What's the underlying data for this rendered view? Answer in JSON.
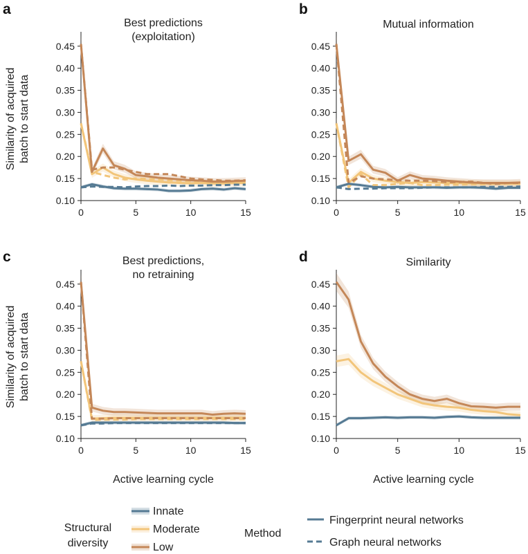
{
  "shared": {
    "xlabel": "Active learning cycle",
    "ylabel_line1": "Similarity of acquired",
    "ylabel_line2": "batch to start data",
    "xlim": [
      0,
      15
    ],
    "ylim": [
      0.1,
      0.47
    ],
    "xticks": [
      "0",
      "5",
      "10",
      "15"
    ],
    "yticks": [
      "0.10",
      "0.15",
      "0.20",
      "0.25",
      "0.30",
      "0.35",
      "0.40",
      "0.45"
    ]
  },
  "legend": {
    "group1_title_line1": "Structural",
    "group1_title_line2": "diversity",
    "group2_title": "Method",
    "innate": "Innate",
    "moderate": "Moderate",
    "low": "Low",
    "fnn": "Fingerprint neural networks",
    "gnn": "Graph neural networks"
  },
  "colors": {
    "innate": "#557a93",
    "moderate": "#f2c57a",
    "low": "#c48758"
  },
  "chart_data": [
    {
      "panel": "a",
      "type": "line",
      "title_line1": "Best predictions",
      "title_line2": "(exploitation)",
      "x": [
        0,
        1,
        2,
        3,
        4,
        5,
        6,
        7,
        8,
        9,
        10,
        11,
        12,
        13,
        14,
        15
      ],
      "series": [
        {
          "name": "Innate",
          "method": "Fingerprint neural networks",
          "values": [
            0.13,
            0.137,
            0.132,
            0.128,
            0.127,
            0.127,
            0.126,
            0.125,
            0.122,
            0.122,
            0.123,
            0.126,
            0.127,
            0.125,
            0.128,
            0.126
          ]
        },
        {
          "name": "Innate",
          "method": "Graph neural networks",
          "values": [
            0.13,
            0.132,
            0.131,
            0.131,
            0.13,
            0.132,
            0.133,
            0.133,
            0.134,
            0.133,
            0.134,
            0.134,
            0.135,
            0.135,
            0.136,
            0.136
          ]
        },
        {
          "name": "Moderate",
          "method": "Fingerprint neural networks",
          "values": [
            0.275,
            0.16,
            0.175,
            0.16,
            0.152,
            0.148,
            0.145,
            0.143,
            0.141,
            0.14,
            0.139,
            0.14,
            0.139,
            0.139,
            0.14,
            0.14
          ]
        },
        {
          "name": "Moderate",
          "method": "Graph neural networks",
          "values": [
            0.275,
            0.165,
            0.158,
            0.152,
            0.148,
            0.15,
            0.149,
            0.148,
            0.146,
            0.145,
            0.144,
            0.143,
            0.143,
            0.142,
            0.142,
            0.142
          ]
        },
        {
          "name": "Low",
          "method": "Fingerprint neural networks",
          "values": [
            0.455,
            0.165,
            0.218,
            0.18,
            0.172,
            0.158,
            0.155,
            0.152,
            0.15,
            0.148,
            0.146,
            0.145,
            0.143,
            0.143,
            0.144,
            0.145
          ]
        },
        {
          "name": "Low",
          "method": "Graph neural networks",
          "values": [
            0.455,
            0.17,
            0.175,
            0.175,
            0.17,
            0.165,
            0.16,
            0.16,
            0.16,
            0.155,
            0.15,
            0.148,
            0.147,
            0.145,
            0.145,
            0.146
          ]
        }
      ]
    },
    {
      "panel": "b",
      "type": "line",
      "title_line1": "Mutual information",
      "title_line2": "",
      "x": [
        0,
        1,
        2,
        3,
        4,
        5,
        6,
        7,
        8,
        9,
        10,
        11,
        12,
        13,
        14,
        15
      ],
      "series": [
        {
          "name": "Innate",
          "method": "Fingerprint neural networks",
          "values": [
            0.13,
            0.138,
            0.135,
            0.131,
            0.13,
            0.131,
            0.13,
            0.13,
            0.13,
            0.129,
            0.13,
            0.13,
            0.129,
            0.127,
            0.129,
            0.129
          ]
        },
        {
          "name": "Innate",
          "method": "Graph neural networks",
          "values": [
            0.13,
            0.126,
            0.127,
            0.127,
            0.128,
            0.128,
            0.128,
            0.129,
            0.13,
            0.13,
            0.13,
            0.13,
            0.131,
            0.131,
            0.131,
            0.132
          ]
        },
        {
          "name": "Moderate",
          "method": "Fingerprint neural networks",
          "values": [
            0.275,
            0.14,
            0.165,
            0.15,
            0.145,
            0.142,
            0.14,
            0.142,
            0.141,
            0.14,
            0.14,
            0.139,
            0.139,
            0.138,
            0.138,
            0.138
          ]
        },
        {
          "name": "Moderate",
          "method": "Graph neural networks",
          "values": [
            0.275,
            0.13,
            0.16,
            0.135,
            0.135,
            0.138,
            0.14,
            0.135,
            0.135,
            0.136,
            0.136,
            0.137,
            0.137,
            0.138,
            0.138,
            0.14
          ]
        },
        {
          "name": "Low",
          "method": "Fingerprint neural networks",
          "values": [
            0.455,
            0.19,
            0.205,
            0.17,
            0.163,
            0.145,
            0.158,
            0.15,
            0.148,
            0.145,
            0.143,
            0.141,
            0.14,
            0.14,
            0.14,
            0.141
          ]
        },
        {
          "name": "Low",
          "method": "Graph neural networks",
          "values": [
            0.455,
            0.14,
            0.155,
            0.15,
            0.148,
            0.146,
            0.145,
            0.145,
            0.144,
            0.142,
            0.142,
            0.143,
            0.14,
            0.138,
            0.14,
            0.14
          ]
        }
      ]
    },
    {
      "panel": "c",
      "type": "line",
      "title_line1": "Best predictions,",
      "title_line2": "no retraining",
      "x": [
        0,
        1,
        2,
        3,
        4,
        5,
        6,
        7,
        8,
        9,
        10,
        11,
        12,
        13,
        14,
        15
      ],
      "series": [
        {
          "name": "Innate",
          "method": "Fingerprint neural networks",
          "values": [
            0.13,
            0.136,
            0.136,
            0.136,
            0.136,
            0.136,
            0.136,
            0.136,
            0.136,
            0.136,
            0.136,
            0.136,
            0.136,
            0.136,
            0.135,
            0.135
          ]
        },
        {
          "name": "Innate",
          "method": "Graph neural networks",
          "values": [
            0.13,
            0.134,
            0.134,
            0.135,
            0.135,
            0.135,
            0.135,
            0.135,
            0.135,
            0.135,
            0.135,
            0.135,
            0.135,
            0.135,
            0.135,
            0.135
          ]
        },
        {
          "name": "Moderate",
          "method": "Fingerprint neural networks",
          "values": [
            0.275,
            0.145,
            0.146,
            0.147,
            0.147,
            0.147,
            0.147,
            0.147,
            0.147,
            0.147,
            0.147,
            0.147,
            0.147,
            0.147,
            0.147,
            0.147
          ]
        },
        {
          "name": "Moderate",
          "method": "Graph neural networks",
          "values": [
            0.275,
            0.142,
            0.143,
            0.143,
            0.143,
            0.144,
            0.144,
            0.144,
            0.144,
            0.144,
            0.144,
            0.144,
            0.144,
            0.144,
            0.144,
            0.144
          ]
        },
        {
          "name": "Low",
          "method": "Fingerprint neural networks",
          "values": [
            0.455,
            0.17,
            0.163,
            0.16,
            0.16,
            0.159,
            0.158,
            0.157,
            0.157,
            0.157,
            0.157,
            0.157,
            0.154,
            0.156,
            0.157,
            0.156
          ]
        },
        {
          "name": "Low",
          "method": "Graph neural networks",
          "values": [
            0.455,
            0.145,
            0.145,
            0.146,
            0.146,
            0.146,
            0.146,
            0.146,
            0.146,
            0.146,
            0.146,
            0.146,
            0.146,
            0.146,
            0.146,
            0.146
          ]
        }
      ]
    },
    {
      "panel": "d",
      "type": "line",
      "title_line1": "Similarity",
      "title_line2": "",
      "x": [
        0,
        1,
        2,
        3,
        4,
        5,
        6,
        7,
        8,
        9,
        10,
        11,
        12,
        13,
        14,
        15
      ],
      "series": [
        {
          "name": "Innate",
          "method": "Fingerprint neural networks",
          "values": [
            0.13,
            0.146,
            0.146,
            0.147,
            0.148,
            0.147,
            0.148,
            0.148,
            0.147,
            0.149,
            0.15,
            0.148,
            0.147,
            0.147,
            0.147,
            0.147
          ]
        },
        {
          "name": "Moderate",
          "method": "Fingerprint neural networks",
          "values": [
            0.275,
            0.28,
            0.25,
            0.23,
            0.215,
            0.2,
            0.19,
            0.18,
            0.175,
            0.172,
            0.17,
            0.165,
            0.162,
            0.16,
            0.155,
            0.153
          ]
        },
        {
          "name": "Low",
          "method": "Fingerprint neural networks",
          "values": [
            0.455,
            0.415,
            0.32,
            0.27,
            0.24,
            0.218,
            0.2,
            0.19,
            0.185,
            0.19,
            0.18,
            0.173,
            0.172,
            0.17,
            0.172,
            0.172
          ]
        }
      ]
    }
  ]
}
